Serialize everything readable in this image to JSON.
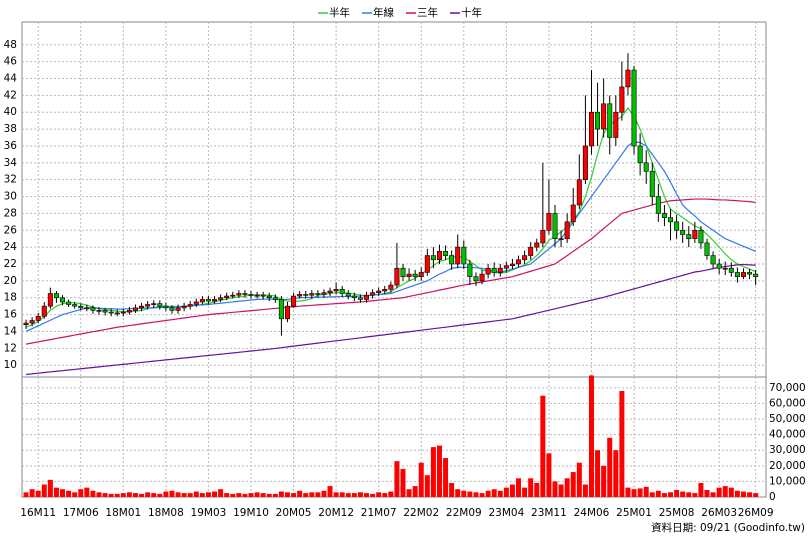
{
  "chart_data": {
    "type": "candlestick",
    "categories": [
      null,
      null,
      "16M11",
      null,
      null,
      null,
      null,
      null,
      null,
      "17M06",
      null,
      null,
      null,
      null,
      null,
      null,
      "18M01",
      null,
      null,
      null,
      null,
      null,
      null,
      "18M08",
      null,
      null,
      null,
      null,
      null,
      null,
      "19M03",
      null,
      null,
      null,
      null,
      null,
      null,
      "19M10",
      null,
      null,
      null,
      null,
      null,
      null,
      "20M05",
      null,
      null,
      null,
      null,
      null,
      null,
      "20M12",
      null,
      null,
      null,
      null,
      null,
      null,
      "21M07",
      null,
      null,
      null,
      null,
      null,
      null,
      "22M02",
      null,
      null,
      null,
      null,
      null,
      null,
      "22M09",
      null,
      null,
      null,
      null,
      null,
      null,
      "23M04",
      null,
      null,
      null,
      null,
      null,
      null,
      "23M11",
      null,
      null,
      null,
      null,
      null,
      null,
      "24M06",
      null,
      null,
      null,
      null,
      null,
      null,
      "25M01",
      null,
      null,
      null,
      null,
      null,
      null,
      "25M08",
      null,
      null,
      null,
      null,
      null,
      null,
      "26M03",
      null,
      null,
      null,
      null,
      null,
      "26M09"
    ],
    "candles": {
      "up_color": "#ff0000",
      "down_color": "#00c000",
      "open": [
        14.8,
        15,
        15.3,
        15.8,
        17,
        18.5,
        18,
        17.5,
        17.2,
        17,
        16.8,
        16.8,
        16.5,
        16.5,
        16.3,
        16.2,
        16.2,
        16.3,
        16.5,
        16.8,
        17,
        17.2,
        17.3,
        17,
        16.8,
        16.5,
        16.8,
        17,
        17.2,
        17.5,
        17.8,
        17.6,
        17.8,
        18,
        18.2,
        18.3,
        18.5,
        18.4,
        18.3,
        18.3,
        18.2,
        18,
        17.8,
        15.5,
        17,
        18.2,
        18.4,
        18.3,
        18.5,
        18.4,
        18.6,
        18.8,
        19,
        18.5,
        18.2,
        18,
        17.8,
        18.3,
        18.6,
        18.8,
        19,
        19.5,
        21.5,
        20.5,
        20.8,
        20.5,
        21,
        23,
        22.5,
        23.5,
        23,
        22,
        24,
        22,
        20.5,
        20,
        20.8,
        21.5,
        21,
        21.5,
        21.8,
        22,
        22.5,
        23,
        24,
        24.5,
        26,
        28,
        25,
        25,
        27,
        29,
        32,
        36,
        40,
        38,
        41,
        37,
        40,
        43,
        45,
        36,
        34,
        33,
        30,
        28,
        27.5,
        27,
        26,
        25.5,
        25,
        26,
        24.5,
        23,
        22,
        21.5,
        21.5,
        21,
        20.5,
        21,
        20.8
      ],
      "high": [
        15.4,
        15.7,
        16.2,
        17.5,
        19.2,
        18.8,
        18.3,
        17.8,
        17.5,
        17.3,
        17.2,
        17.1,
        16.9,
        16.8,
        16.7,
        16.6,
        16.7,
        16.9,
        17.2,
        17.4,
        17.6,
        17.7,
        17.7,
        17.4,
        17.1,
        17.2,
        17.4,
        17.6,
        17.9,
        18.2,
        18.2,
        18.2,
        18.4,
        18.6,
        18.7,
        18.9,
        18.9,
        18.8,
        18.7,
        18.7,
        18.6,
        18.4,
        18.2,
        17.5,
        18.6,
        18.8,
        18.8,
        18.9,
        18.9,
        19,
        19.2,
        19.8,
        19.4,
        18.9,
        18.6,
        18.4,
        18.7,
        19,
        19.2,
        19.4,
        19.9,
        24.5,
        22,
        21.5,
        21.3,
        21.6,
        23.8,
        24,
        24.3,
        24.2,
        23.6,
        25.5,
        24.8,
        22.5,
        21,
        21.3,
        22,
        22.2,
        22,
        22.3,
        22.6,
        23,
        23.6,
        24.6,
        25,
        34,
        32,
        29,
        26,
        28,
        31,
        35,
        42,
        45,
        43.5,
        44,
        42,
        42,
        46,
        47,
        45.5,
        37.5,
        35.5,
        34,
        31.5,
        29,
        28.5,
        27.8,
        27,
        26.5,
        27,
        26.5,
        25,
        23.5,
        22.6,
        22.3,
        22.2,
        21.6,
        21.5,
        21.4,
        21.3
      ],
      "low": [
        14.3,
        14.6,
        15,
        15.5,
        16.7,
        17.4,
        17.1,
        16.9,
        16.7,
        16.5,
        16.4,
        16.1,
        16,
        15.9,
        15.8,
        15.8,
        15.8,
        16,
        16.2,
        16.4,
        16.6,
        16.8,
        16.6,
        16.4,
        16.1,
        16.1,
        16.4,
        16.6,
        16.9,
        17.2,
        17.2,
        17.3,
        17.5,
        17.7,
        17.9,
        18,
        18,
        17.9,
        17.9,
        17.8,
        17.6,
        17.4,
        13.5,
        15.1,
        16.8,
        17.9,
        17.9,
        17.9,
        18,
        18,
        18.2,
        18.4,
        18.1,
        17.8,
        17.6,
        17.4,
        17.4,
        17.9,
        18.2,
        18.4,
        18.6,
        19.1,
        20,
        20,
        20,
        20,
        20.6,
        21.5,
        22,
        22.5,
        21.3,
        21.5,
        21.4,
        19.5,
        19.4,
        19.6,
        20.3,
        20.5,
        20.5,
        21,
        21.4,
        21.6,
        22,
        22.5,
        23.5,
        24,
        25.5,
        24,
        24,
        24.5,
        26.5,
        28.5,
        31.5,
        35,
        36,
        37,
        35,
        36,
        39,
        42,
        35,
        32.5,
        31.5,
        29,
        27,
        26.5,
        24.8,
        25,
        24.5,
        24,
        24.5,
        23.8,
        22.5,
        21.5,
        20.8,
        20.7,
        20.5,
        19.8,
        20.2,
        20.2,
        19.5
      ],
      "close": [
        15,
        15.3,
        15.8,
        17,
        18.5,
        18,
        17.5,
        17.2,
        17,
        16.8,
        16.8,
        16.5,
        16.5,
        16.3,
        16.2,
        16.2,
        16.3,
        16.5,
        16.8,
        17,
        17.2,
        17.3,
        17,
        16.8,
        16.5,
        16.8,
        17,
        17.2,
        17.5,
        17.8,
        17.6,
        17.8,
        18,
        18.2,
        18.3,
        18.5,
        18.4,
        18.3,
        18.3,
        18.2,
        18,
        17.8,
        15.5,
        17,
        18.2,
        18.4,
        18.3,
        18.5,
        18.4,
        18.6,
        18.8,
        19,
        18.5,
        18.2,
        18,
        17.8,
        18.3,
        18.6,
        18.8,
        19,
        19.5,
        21.5,
        20.5,
        20.8,
        20.5,
        21,
        23,
        22.5,
        23.5,
        23,
        22,
        24,
        22,
        20.5,
        20,
        20.8,
        21.5,
        21,
        21.5,
        21.8,
        22,
        22.5,
        23,
        24,
        24.5,
        26,
        28,
        25,
        25,
        27,
        29,
        32,
        36,
        40,
        38,
        41,
        37,
        40,
        43,
        45,
        36,
        34,
        33,
        30,
        28,
        27.5,
        27,
        26,
        25.5,
        25,
        26,
        24.5,
        23,
        22,
        21.5,
        21.5,
        21,
        20.5,
        21,
        20.8,
        20.5
      ]
    },
    "series": [
      {
        "name": "半年",
        "color": "#33cc33",
        "values": [
          14.5,
          14.8,
          15.2,
          15.8,
          16.5,
          17,
          17.3,
          17.4,
          17.4,
          17.3,
          17.1,
          16.9,
          16.7,
          16.6,
          16.5,
          16.4,
          16.35,
          16.35,
          16.4,
          16.5,
          16.7,
          16.85,
          16.95,
          17,
          17,
          16.95,
          16.95,
          17,
          17.1,
          17.2,
          17.35,
          17.5,
          17.7,
          17.85,
          18,
          18.1,
          18.2,
          18.3,
          18.35,
          18.35,
          18.3,
          18.2,
          17.8,
          17.6,
          17.6,
          17.6,
          17.7,
          17.9,
          18.3,
          18.4,
          18.5,
          18.6,
          18.6,
          18.55,
          18.45,
          18.3,
          18.25,
          18.3,
          18.4,
          18.5,
          18.7,
          19.2,
          19.6,
          20,
          20.3,
          20.8,
          21.3,
          21.8,
          22.3,
          22.5,
          22.8,
          22.9,
          22.8,
          22.3,
          21.8,
          21.3,
          21.1,
          21,
          20.9,
          21,
          21.3,
          21.6,
          21.9,
          22.4,
          23,
          23.8,
          24.8,
          25.3,
          25.8,
          26.4,
          27.2,
          28.2,
          30,
          32.3,
          35,
          37.5,
          38.5,
          39,
          39.5,
          40.5,
          39.5,
          38,
          36,
          34,
          32,
          30,
          28.5,
          28,
          27.5,
          27,
          26.5,
          26.2,
          25.5,
          24.8,
          24,
          23.2,
          22.5,
          22,
          21.7,
          21.4,
          21.1
        ]
      },
      {
        "name": "年線",
        "color": "#3377ee",
        "values": [
          14,
          14.33,
          14.67,
          15,
          15.33,
          15.67,
          16,
          16.2,
          16.4,
          16.6,
          16.8,
          16.8,
          16.75,
          16.7,
          16.7,
          16.65,
          16.65,
          16.7,
          16.7,
          16.75,
          16.8,
          16.8,
          16.85,
          16.85,
          16.9,
          16.95,
          17,
          17.05,
          17.1,
          17.15,
          17.2,
          17.28,
          17.35,
          17.43,
          17.5,
          17.58,
          17.65,
          17.73,
          17.8,
          17.83,
          17.86,
          17.8,
          17.75,
          17.8,
          17.9,
          18,
          18.02,
          18.04,
          18.06,
          18.08,
          18.1,
          18.12,
          18.14,
          18.16,
          18.18,
          18.2,
          18.26,
          18.32,
          18.38,
          18.44,
          18.5,
          18.75,
          19,
          19.25,
          19.5,
          19.75,
          20,
          20.4,
          20.8,
          21.1,
          21.5,
          21.6,
          21.6,
          21.6,
          21.55,
          21.5,
          21.3,
          21.15,
          21,
          21.2,
          21.4,
          21.6,
          21.8,
          22,
          22.6,
          23.2,
          23.8,
          24.4,
          25,
          26,
          27,
          28,
          29,
          30,
          31,
          32,
          33,
          34,
          35,
          36,
          36.5,
          36.4,
          36,
          35,
          34,
          33,
          31.7,
          30.3,
          29,
          28.3,
          27.7,
          27,
          26.5,
          26,
          25.5,
          25,
          24.7,
          24.4,
          24.1,
          23.8,
          23.5
        ]
      },
      {
        "name": "三年",
        "color": "#cc1166",
        "values": [
          12.5,
          12.63,
          12.77,
          12.9,
          13.03,
          13.17,
          13.3,
          13.43,
          13.57,
          13.7,
          13.83,
          13.97,
          14.1,
          14.23,
          14.37,
          14.5,
          14.6,
          14.7,
          14.8,
          14.9,
          15,
          15.1,
          15.2,
          15.3,
          15.4,
          15.5,
          15.6,
          15.7,
          15.8,
          15.9,
          16,
          16.07,
          16.13,
          16.2,
          16.27,
          16.33,
          16.4,
          16.47,
          16.53,
          16.6,
          16.67,
          16.73,
          16.8,
          16.87,
          16.93,
          17,
          17.05,
          17.1,
          17.15,
          17.2,
          17.25,
          17.3,
          17.35,
          17.4,
          17.45,
          17.5,
          17.57,
          17.64,
          17.71,
          17.79,
          17.86,
          17.93,
          18,
          18.15,
          18.3,
          18.45,
          18.6,
          18.75,
          18.9,
          19.05,
          19.2,
          19.35,
          19.5,
          19.63,
          19.75,
          19.88,
          20,
          20.13,
          20.25,
          20.38,
          20.5,
          20.71,
          20.93,
          21.14,
          21.36,
          21.57,
          21.79,
          22,
          22.5,
          23,
          23.5,
          24,
          24.5,
          25,
          25.6,
          26.2,
          26.8,
          27.4,
          28,
          28.2,
          28.4,
          28.6,
          28.8,
          29,
          29.2,
          29.35,
          29.5,
          29.55,
          29.6,
          29.65,
          29.7,
          29.7,
          29.7,
          29.65,
          29.6,
          29.6,
          29.55,
          29.5,
          29.45,
          29.4,
          29.3
        ]
      },
      {
        "name": "十年",
        "color": "#661199",
        "values": [
          8.9,
          8.98,
          9.05,
          9.13,
          9.2,
          9.28,
          9.35,
          9.43,
          9.5,
          9.58,
          9.65,
          9.73,
          9.8,
          9.88,
          9.95,
          10.03,
          10.1,
          10.18,
          10.25,
          10.33,
          10.4,
          10.48,
          10.55,
          10.63,
          10.7,
          10.78,
          10.85,
          10.93,
          11,
          11.08,
          11.15,
          11.23,
          11.3,
          11.38,
          11.45,
          11.53,
          11.6,
          11.68,
          11.75,
          11.83,
          11.9,
          11.99,
          12.08,
          12.17,
          12.26,
          12.35,
          12.44,
          12.53,
          12.62,
          12.71,
          12.8,
          12.89,
          12.98,
          13.07,
          13.16,
          13.25,
          13.34,
          13.43,
          13.52,
          13.61,
          13.7,
          13.79,
          13.88,
          13.97,
          14.06,
          14.15,
          14.24,
          14.33,
          14.42,
          14.51,
          14.6,
          14.69,
          14.78,
          14.87,
          14.96,
          15.05,
          15.14,
          15.23,
          15.32,
          15.41,
          15.5,
          15.67,
          15.84,
          16.01,
          16.18,
          16.35,
          16.52,
          16.69,
          16.86,
          17.03,
          17.2,
          17.37,
          17.54,
          17.71,
          17.88,
          18.05,
          18.25,
          18.45,
          18.65,
          18.85,
          19.05,
          19.25,
          19.45,
          19.65,
          19.85,
          20.05,
          20.25,
          20.45,
          20.65,
          20.85,
          21.05,
          21.15,
          21.3,
          21.45,
          21.6,
          21.7,
          21.8,
          21.9,
          21.95,
          21.9,
          21.85
        ]
      }
    ],
    "ylim": [
      8.6,
      50.7
    ],
    "yticks": [
      10,
      12,
      14,
      16,
      18,
      20,
      22,
      24,
      26,
      28,
      30,
      32,
      34,
      36,
      38,
      40,
      42,
      44,
      46,
      48
    ],
    "grid": true,
    "volume": {
      "type": "bar",
      "color": "#ff0000",
      "values": [
        3000,
        5000,
        4000,
        8000,
        11000,
        6000,
        5000,
        4000,
        3000,
        5000,
        6000,
        4000,
        3000,
        2500,
        2000,
        2000,
        2500,
        3000,
        2500,
        2000,
        3000,
        2500,
        2000,
        3500,
        4000,
        3000,
        2500,
        2500,
        3500,
        2500,
        3000,
        3500,
        5000,
        2500,
        2000,
        2500,
        2000,
        2500,
        3000,
        2500,
        2000,
        2000,
        3500,
        3000,
        2500,
        4000,
        2500,
        3000,
        3000,
        4000,
        7000,
        3000,
        3000,
        2500,
        2500,
        3000,
        2500,
        2000,
        3000,
        2500,
        3500,
        23000,
        18000,
        5000,
        7000,
        22000,
        14000,
        32000,
        33000,
        25000,
        9000,
        5000,
        4000,
        3500,
        3000,
        2500,
        4000,
        5000,
        4000,
        6000,
        8000,
        12000,
        6000,
        12000,
        9000,
        65000,
        28000,
        10000,
        8000,
        12000,
        16000,
        22000,
        8000,
        78000,
        30000,
        20000,
        38000,
        30000,
        68000,
        6000,
        5000,
        5500,
        6500,
        3000,
        4000,
        2500,
        3000,
        4500,
        3500,
        3000,
        2500,
        9000,
        4500,
        3000,
        6000,
        7000,
        6000,
        4000,
        3500,
        3000,
        2500
      ],
      "ylim": [
        0,
        77000
      ],
      "yticks": [
        0,
        {
          "value": 10000,
          "label": "10,000"
        },
        {
          "value": 20000,
          "label": "20,000"
        },
        {
          "value": 30000,
          "label": "30,000"
        },
        {
          "value": 40000,
          "label": "40,000"
        },
        {
          "value": 50000,
          "label": "50,000"
        },
        {
          "value": 60000,
          "label": "60,000"
        },
        {
          "value": 70000,
          "label": "70,000"
        }
      ]
    },
    "footnote": "資料日期: 09/21 (Goodinfo.tw)"
  }
}
